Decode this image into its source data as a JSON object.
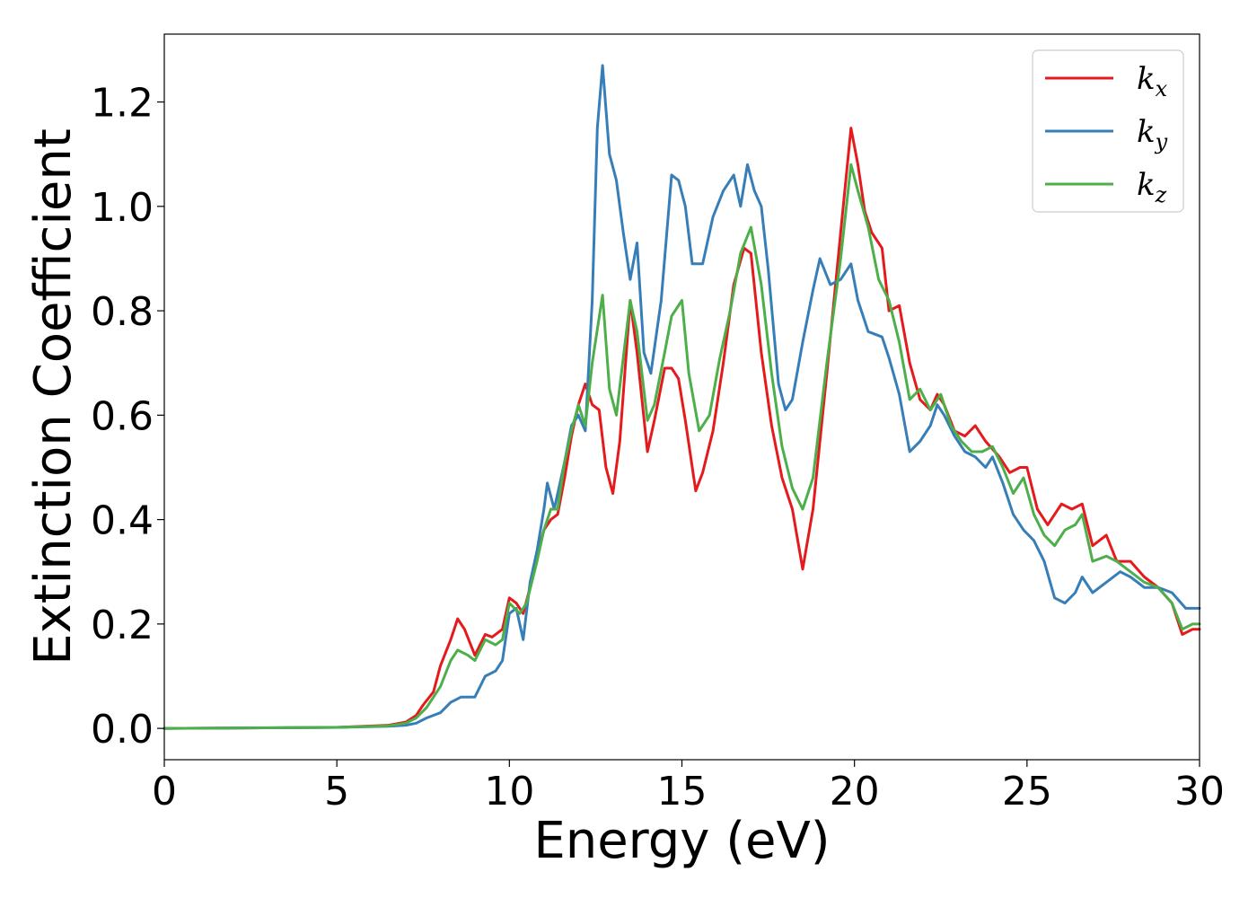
{
  "chart_data": {
    "type": "line",
    "xlabel": "Energy (eV)",
    "ylabel": "Extinction Coefficient",
    "xlim": [
      0,
      30
    ],
    "ylim": [
      -0.06,
      1.33
    ],
    "xticks": [
      0,
      5,
      10,
      15,
      20,
      25,
      30
    ],
    "yticks": [
      0.0,
      0.2,
      0.4,
      0.6,
      0.8,
      1.0,
      1.2
    ],
    "xtick_labels": [
      "0",
      "5",
      "10",
      "15",
      "20",
      "25",
      "30"
    ],
    "ytick_labels": [
      "0.0",
      "0.2",
      "0.4",
      "0.6",
      "0.8",
      "1.0",
      "1.2"
    ],
    "grid": false,
    "legend": {
      "position": "top-right"
    },
    "series": [
      {
        "name": "kx",
        "label_base": "k",
        "label_sub": "x",
        "color": "#e41a1c",
        "points": [
          [
            0,
            0
          ],
          [
            5,
            0.002
          ],
          [
            6.5,
            0.006
          ],
          [
            7.0,
            0.012
          ],
          [
            7.3,
            0.025
          ],
          [
            7.5,
            0.045
          ],
          [
            7.8,
            0.07
          ],
          [
            8.0,
            0.12
          ],
          [
            8.3,
            0.17
          ],
          [
            8.5,
            0.21
          ],
          [
            8.7,
            0.19
          ],
          [
            9.0,
            0.14
          ],
          [
            9.3,
            0.18
          ],
          [
            9.5,
            0.175
          ],
          [
            9.8,
            0.19
          ],
          [
            10.0,
            0.25
          ],
          [
            10.2,
            0.24
          ],
          [
            10.4,
            0.22
          ],
          [
            10.6,
            0.27
          ],
          [
            10.8,
            0.33
          ],
          [
            11.0,
            0.38
          ],
          [
            11.2,
            0.4
          ],
          [
            11.4,
            0.41
          ],
          [
            11.6,
            0.48
          ],
          [
            11.8,
            0.56
          ],
          [
            12.0,
            0.62
          ],
          [
            12.2,
            0.66
          ],
          [
            12.4,
            0.62
          ],
          [
            12.6,
            0.61
          ],
          [
            12.8,
            0.5
          ],
          [
            13.0,
            0.45
          ],
          [
            13.2,
            0.55
          ],
          [
            13.5,
            0.82
          ],
          [
            13.7,
            0.72
          ],
          [
            14.0,
            0.53
          ],
          [
            14.2,
            0.59
          ],
          [
            14.5,
            0.69
          ],
          [
            14.7,
            0.69
          ],
          [
            14.9,
            0.67
          ],
          [
            15.1,
            0.59
          ],
          [
            15.4,
            0.455
          ],
          [
            15.6,
            0.49
          ],
          [
            15.9,
            0.57
          ],
          [
            16.2,
            0.7
          ],
          [
            16.5,
            0.85
          ],
          [
            16.8,
            0.92
          ],
          [
            17.0,
            0.91
          ],
          [
            17.3,
            0.72
          ],
          [
            17.6,
            0.58
          ],
          [
            17.9,
            0.48
          ],
          [
            18.2,
            0.42
          ],
          [
            18.5,
            0.305
          ],
          [
            18.8,
            0.42
          ],
          [
            19.2,
            0.68
          ],
          [
            19.6,
            0.95
          ],
          [
            19.9,
            1.15
          ],
          [
            20.1,
            1.08
          ],
          [
            20.3,
            0.99
          ],
          [
            20.5,
            0.95
          ],
          [
            20.8,
            0.92
          ],
          [
            21.0,
            0.8
          ],
          [
            21.3,
            0.81
          ],
          [
            21.6,
            0.7
          ],
          [
            21.9,
            0.63
          ],
          [
            22.2,
            0.61
          ],
          [
            22.4,
            0.64
          ],
          [
            22.6,
            0.62
          ],
          [
            22.9,
            0.57
          ],
          [
            23.2,
            0.56
          ],
          [
            23.5,
            0.58
          ],
          [
            23.8,
            0.55
          ],
          [
            24.2,
            0.52
          ],
          [
            24.5,
            0.49
          ],
          [
            24.8,
            0.5
          ],
          [
            25.0,
            0.5
          ],
          [
            25.3,
            0.42
          ],
          [
            25.6,
            0.39
          ],
          [
            26.0,
            0.43
          ],
          [
            26.3,
            0.42
          ],
          [
            26.6,
            0.43
          ],
          [
            26.9,
            0.35
          ],
          [
            27.3,
            0.37
          ],
          [
            27.6,
            0.32
          ],
          [
            28.0,
            0.32
          ],
          [
            28.4,
            0.29
          ],
          [
            28.8,
            0.27
          ],
          [
            29.2,
            0.24
          ],
          [
            29.5,
            0.18
          ],
          [
            29.8,
            0.19
          ],
          [
            30.0,
            0.19
          ]
        ]
      },
      {
        "name": "ky",
        "label_base": "k",
        "label_sub": "y",
        "color": "#377eb8",
        "points": [
          [
            0,
            0
          ],
          [
            5,
            0.002
          ],
          [
            6.5,
            0.004
          ],
          [
            7.0,
            0.006
          ],
          [
            7.3,
            0.01
          ],
          [
            7.6,
            0.02
          ],
          [
            8.0,
            0.03
          ],
          [
            8.3,
            0.05
          ],
          [
            8.6,
            0.06
          ],
          [
            9.0,
            0.06
          ],
          [
            9.3,
            0.1
          ],
          [
            9.6,
            0.11
          ],
          [
            9.8,
            0.13
          ],
          [
            10.0,
            0.22
          ],
          [
            10.2,
            0.23
          ],
          [
            10.4,
            0.17
          ],
          [
            10.6,
            0.28
          ],
          [
            10.8,
            0.34
          ],
          [
            11.0,
            0.42
          ],
          [
            11.1,
            0.47
          ],
          [
            11.3,
            0.42
          ],
          [
            11.6,
            0.51
          ],
          [
            11.8,
            0.58
          ],
          [
            12.0,
            0.6
          ],
          [
            12.2,
            0.57
          ],
          [
            12.4,
            0.82
          ],
          [
            12.55,
            1.15
          ],
          [
            12.7,
            1.27
          ],
          [
            12.9,
            1.1
          ],
          [
            13.1,
            1.05
          ],
          [
            13.3,
            0.95
          ],
          [
            13.5,
            0.86
          ],
          [
            13.7,
            0.93
          ],
          [
            13.9,
            0.72
          ],
          [
            14.1,
            0.68
          ],
          [
            14.4,
            0.82
          ],
          [
            14.7,
            1.06
          ],
          [
            14.9,
            1.05
          ],
          [
            15.1,
            1.0
          ],
          [
            15.3,
            0.89
          ],
          [
            15.6,
            0.89
          ],
          [
            15.9,
            0.98
          ],
          [
            16.2,
            1.03
          ],
          [
            16.5,
            1.06
          ],
          [
            16.7,
            1.0
          ],
          [
            16.9,
            1.08
          ],
          [
            17.1,
            1.03
          ],
          [
            17.3,
            1.0
          ],
          [
            17.5,
            0.88
          ],
          [
            17.8,
            0.66
          ],
          [
            18.0,
            0.61
          ],
          [
            18.2,
            0.63
          ],
          [
            18.5,
            0.74
          ],
          [
            18.8,
            0.84
          ],
          [
            19.0,
            0.9
          ],
          [
            19.3,
            0.85
          ],
          [
            19.6,
            0.86
          ],
          [
            19.9,
            0.89
          ],
          [
            20.1,
            0.82
          ],
          [
            20.4,
            0.76
          ],
          [
            20.8,
            0.75
          ],
          [
            21.0,
            0.71
          ],
          [
            21.3,
            0.64
          ],
          [
            21.6,
            0.53
          ],
          [
            21.9,
            0.55
          ],
          [
            22.2,
            0.58
          ],
          [
            22.4,
            0.62
          ],
          [
            22.6,
            0.6
          ],
          [
            22.9,
            0.56
          ],
          [
            23.2,
            0.53
          ],
          [
            23.5,
            0.52
          ],
          [
            23.8,
            0.5
          ],
          [
            24.0,
            0.52
          ],
          [
            24.3,
            0.47
          ],
          [
            24.6,
            0.41
          ],
          [
            24.9,
            0.38
          ],
          [
            25.2,
            0.36
          ],
          [
            25.5,
            0.32
          ],
          [
            25.8,
            0.25
          ],
          [
            26.1,
            0.24
          ],
          [
            26.4,
            0.26
          ],
          [
            26.6,
            0.29
          ],
          [
            26.9,
            0.26
          ],
          [
            27.3,
            0.28
          ],
          [
            27.7,
            0.3
          ],
          [
            28.0,
            0.29
          ],
          [
            28.4,
            0.27
          ],
          [
            28.8,
            0.27
          ],
          [
            29.2,
            0.26
          ],
          [
            29.6,
            0.23
          ],
          [
            30.0,
            0.23
          ]
        ]
      },
      {
        "name": "kz",
        "label_base": "k",
        "label_sub": "z",
        "color": "#4daf4a",
        "points": [
          [
            0,
            0
          ],
          [
            5,
            0.002
          ],
          [
            6.5,
            0.005
          ],
          [
            7.0,
            0.01
          ],
          [
            7.3,
            0.02
          ],
          [
            7.6,
            0.04
          ],
          [
            8.0,
            0.08
          ],
          [
            8.3,
            0.13
          ],
          [
            8.5,
            0.15
          ],
          [
            8.8,
            0.14
          ],
          [
            9.0,
            0.13
          ],
          [
            9.3,
            0.17
          ],
          [
            9.6,
            0.16
          ],
          [
            9.8,
            0.17
          ],
          [
            10.0,
            0.24
          ],
          [
            10.3,
            0.22
          ],
          [
            10.5,
            0.24
          ],
          [
            10.8,
            0.32
          ],
          [
            11.0,
            0.38
          ],
          [
            11.2,
            0.42
          ],
          [
            11.4,
            0.42
          ],
          [
            11.6,
            0.51
          ],
          [
            11.8,
            0.57
          ],
          [
            12.0,
            0.62
          ],
          [
            12.2,
            0.58
          ],
          [
            12.4,
            0.7
          ],
          [
            12.7,
            0.83
          ],
          [
            12.9,
            0.65
          ],
          [
            13.1,
            0.6
          ],
          [
            13.5,
            0.82
          ],
          [
            13.7,
            0.76
          ],
          [
            14.0,
            0.59
          ],
          [
            14.2,
            0.62
          ],
          [
            14.5,
            0.72
          ],
          [
            14.7,
            0.79
          ],
          [
            15.0,
            0.82
          ],
          [
            15.2,
            0.68
          ],
          [
            15.5,
            0.57
          ],
          [
            15.8,
            0.6
          ],
          [
            16.1,
            0.71
          ],
          [
            16.4,
            0.8
          ],
          [
            16.7,
            0.91
          ],
          [
            17.0,
            0.96
          ],
          [
            17.3,
            0.85
          ],
          [
            17.6,
            0.68
          ],
          [
            17.9,
            0.54
          ],
          [
            18.2,
            0.46
          ],
          [
            18.5,
            0.42
          ],
          [
            18.8,
            0.48
          ],
          [
            19.2,
            0.7
          ],
          [
            19.6,
            0.9
          ],
          [
            19.9,
            1.08
          ],
          [
            20.1,
            1.03
          ],
          [
            20.4,
            0.96
          ],
          [
            20.7,
            0.86
          ],
          [
            21.0,
            0.82
          ],
          [
            21.3,
            0.74
          ],
          [
            21.6,
            0.63
          ],
          [
            21.9,
            0.65
          ],
          [
            22.2,
            0.61
          ],
          [
            22.5,
            0.64
          ],
          [
            22.8,
            0.58
          ],
          [
            23.1,
            0.55
          ],
          [
            23.4,
            0.53
          ],
          [
            23.7,
            0.53
          ],
          [
            24.0,
            0.54
          ],
          [
            24.3,
            0.5
          ],
          [
            24.6,
            0.45
          ],
          [
            24.9,
            0.48
          ],
          [
            25.2,
            0.41
          ],
          [
            25.5,
            0.37
          ],
          [
            25.8,
            0.35
          ],
          [
            26.1,
            0.38
          ],
          [
            26.4,
            0.39
          ],
          [
            26.6,
            0.41
          ],
          [
            26.9,
            0.32
          ],
          [
            27.3,
            0.33
          ],
          [
            27.6,
            0.32
          ],
          [
            28.0,
            0.3
          ],
          [
            28.4,
            0.28
          ],
          [
            28.8,
            0.27
          ],
          [
            29.2,
            0.24
          ],
          [
            29.5,
            0.19
          ],
          [
            29.8,
            0.2
          ],
          [
            30.0,
            0.2
          ]
        ]
      }
    ]
  }
}
